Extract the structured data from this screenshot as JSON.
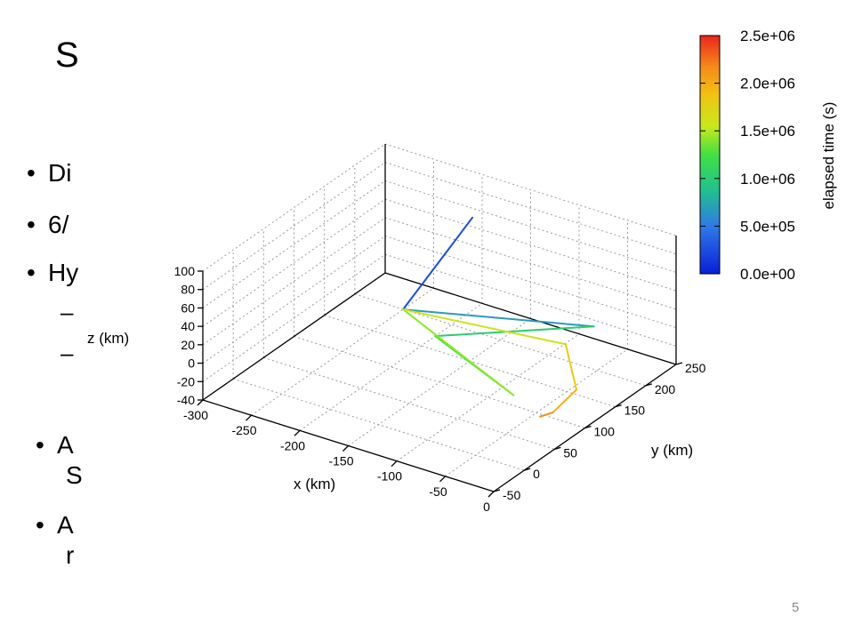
{
  "slide": {
    "title_visible": "S",
    "page_number": "5"
  },
  "bullets": [
    {
      "text": "Di"
    },
    {
      "text": "6/"
    },
    {
      "text": "Hy"
    }
  ],
  "sub_bullets": [
    {
      "text": "–"
    },
    {
      "text": "–"
    }
  ],
  "lower_bullets": [
    {
      "line1": "A",
      "line2": "S"
    },
    {
      "line1": "A",
      "line2": "r"
    }
  ],
  "chart_data": {
    "type": "line",
    "projection": "3d",
    "x_axis": {
      "label": "x (km)",
      "range": [
        -300,
        0
      ],
      "ticks": [
        "-300",
        "-250",
        "-200",
        "-150",
        "-100",
        "-50",
        "0"
      ]
    },
    "y_axis": {
      "label": "y (km)",
      "range": [
        -50,
        250
      ],
      "ticks": [
        "-50",
        "0",
        "50",
        "100",
        "150",
        "200",
        "250"
      ]
    },
    "z_axis": {
      "label": "z (km)",
      "range": [
        -40,
        100
      ],
      "ticks": [
        "-40",
        "-20",
        "0",
        "20",
        "40",
        "60",
        "80",
        "100"
      ]
    },
    "grid": true,
    "colorbar": {
      "label": "elapsed time (s)",
      "range": [
        0,
        2500000
      ],
      "ticks": [
        "0.0e+00",
        "5.0e+05",
        "1.0e+06",
        "1.5e+06",
        "2.0e+06",
        "2.5e+06"
      ],
      "colormap": [
        "#0a1fd8",
        "#2f7be6",
        "#21c08e",
        "#43e043",
        "#c8e81c",
        "#f2c214",
        "#f58a1a",
        "#e8251c"
      ]
    },
    "series": [
      {
        "points": [
          {
            "x": -163,
            "y": 175,
            "z": 100,
            "t": 0
          },
          {
            "x": -175,
            "y": 80,
            "z": 40,
            "t": 350000
          },
          {
            "x": -22,
            "y": 150,
            "z": 40,
            "t": 700000
          },
          {
            "x": -125,
            "y": 53,
            "z": 40,
            "t": 1000000
          },
          {
            "x": -58,
            "y": 75,
            "z": -12,
            "t": 1200000
          },
          {
            "x": -175,
            "y": 80,
            "z": 40,
            "t": 1350000
          },
          {
            "x": -38,
            "y": 129,
            "z": 25,
            "t": 1600000
          },
          {
            "x": -30,
            "y": 134,
            "z": -24,
            "t": 1800000
          },
          {
            "x": -33,
            "y": 100,
            "z": -34,
            "t": 2000000
          },
          {
            "x": -35,
            "y": 82,
            "z": -31,
            "t": 2250000
          }
        ]
      }
    ]
  }
}
